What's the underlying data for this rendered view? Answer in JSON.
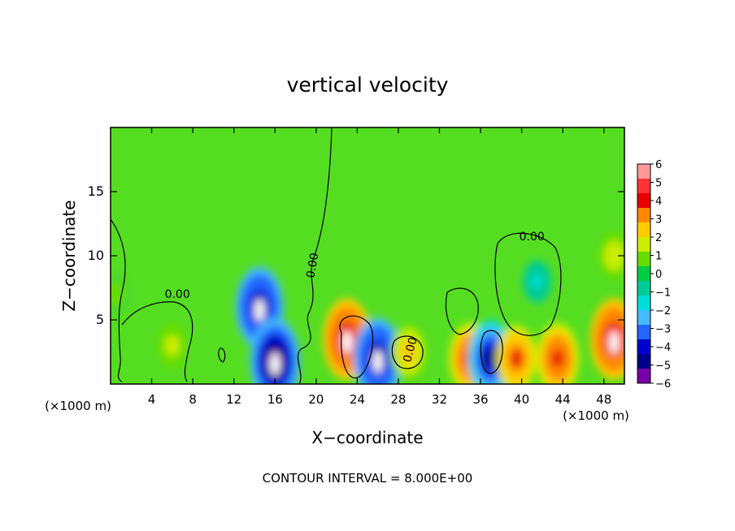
{
  "chart_data": {
    "type": "heatmap",
    "title": "vertical velocity",
    "xlabel": "X−coordinate",
    "ylabel": "Z−coordinate",
    "x_units_left": "(×1000 m)",
    "x_units_right": "(×1000 m)",
    "footer": "CONTOUR INTERVAL = 8.000E+00",
    "xlim": [
      0,
      50
    ],
    "ylim": [
      0,
      20
    ],
    "xticks": [
      4,
      8,
      12,
      16,
      20,
      24,
      28,
      32,
      36,
      40,
      44,
      48
    ],
    "xtick_labels": [
      "4",
      "8",
      "12",
      "16",
      "20",
      "24",
      "28",
      "32",
      "36",
      "40",
      "44",
      "48"
    ],
    "yticks": [
      5,
      10,
      15
    ],
    "ytick_labels": [
      "5",
      "10",
      "15"
    ],
    "colorbar": {
      "levels": [
        "6",
        "5",
        "4",
        "3",
        "2",
        "1",
        "0",
        "−1",
        "−2",
        "−3",
        "−4",
        "−5",
        "−6"
      ],
      "colors": [
        "#ff9999",
        "#ff3333",
        "#e60000",
        "#ff8800",
        "#ffcc00",
        "#ccee00",
        "#66dd00",
        "#00cc44",
        "#00cc99",
        "#00dddd",
        "#44bbff",
        "#2266ff",
        "#0000cc",
        "#000088",
        "#7700aa"
      ]
    },
    "field_features": [
      {
        "x": 0.5,
        "z": 7,
        "w": 0.8,
        "kind": "updraft"
      },
      {
        "x": 6,
        "z": 3,
        "w": 1.8,
        "kind": "updraft"
      },
      {
        "x": 14.5,
        "z": 6,
        "w": -5.5,
        "kind": "downdraft"
      },
      {
        "x": 16,
        "z": 1.8,
        "w": -6,
        "kind": "downdraft"
      },
      {
        "x": 23,
        "z": 3.5,
        "w": 5.5,
        "kind": "updraft"
      },
      {
        "x": 26,
        "z": 2,
        "w": -5.5,
        "kind": "downdraft"
      },
      {
        "x": 29,
        "z": 2.5,
        "w": 3,
        "kind": "updraft"
      },
      {
        "x": 35,
        "z": 2,
        "w": 4.5,
        "kind": "updraft"
      },
      {
        "x": 37,
        "z": 2,
        "w": -5,
        "kind": "downdraft"
      },
      {
        "x": 39.5,
        "z": 2,
        "w": 4,
        "kind": "updraft"
      },
      {
        "x": 41.5,
        "z": 8,
        "w": -1.5,
        "kind": "downdraft"
      },
      {
        "x": 43.5,
        "z": 2,
        "w": 4.5,
        "kind": "updraft"
      },
      {
        "x": 49,
        "z": 3.5,
        "w": 5.5,
        "kind": "updraft"
      },
      {
        "x": 49,
        "z": 10,
        "w": 2,
        "kind": "updraft"
      }
    ],
    "contour_labels": [
      {
        "x": 6.5,
        "z": 6.7,
        "text": "0.00"
      },
      {
        "x": 20,
        "z": 9.2,
        "text": "0.00"
      },
      {
        "x": 29.5,
        "z": 2.6,
        "text": "0.00"
      },
      {
        "x": 41,
        "z": 11.2,
        "text": "0.00"
      }
    ]
  }
}
